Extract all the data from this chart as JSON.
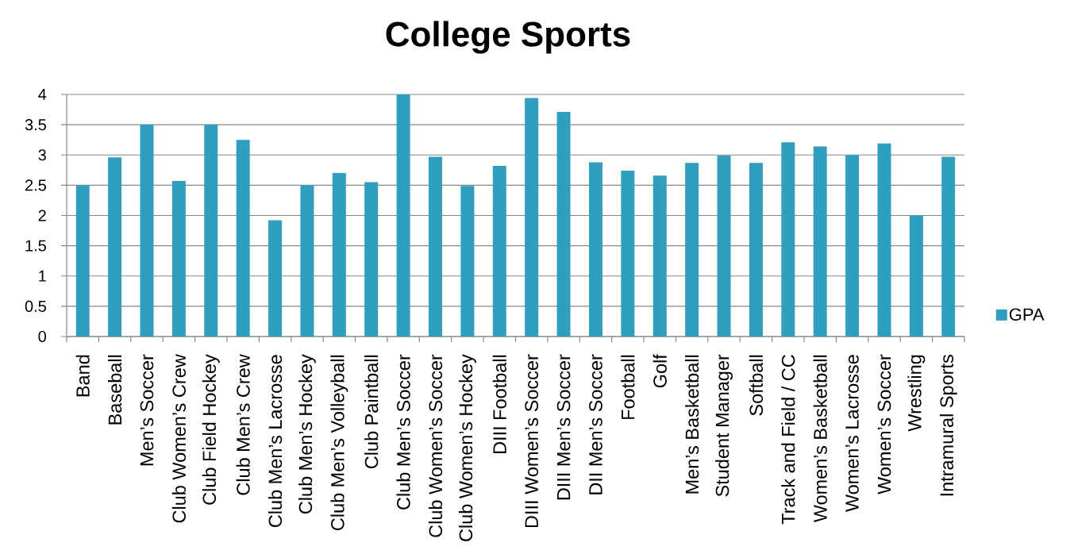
{
  "chart_data": {
    "type": "bar",
    "title": "College Sports",
    "categories": [
      "Band",
      "Baseball",
      "Men’s Soccer",
      "Club Women’s Crew",
      "Club Field Hockey",
      "Club Men’s Crew",
      "Club Men’s Lacrosse",
      "Club Men’s Hockey",
      "Club Men’s Volleyball",
      "Club Paintball",
      "Club Men’s Soccer",
      "Club Women’s Soccer",
      "Club Women’s Hockey",
      "DIII Football",
      "DIII Women’s Soccer",
      "DIII Men’s Soccer",
      "DII Men’s Soccer",
      "Football",
      "Golf",
      "Men’s Basketball",
      "Student Manager",
      "Softball",
      "Track and Field / CC",
      "Women’s Basketball",
      "Women’s Lacrosse",
      "Women’s Soccer",
      "Wrestling",
      "Intramural Sports"
    ],
    "series": [
      {
        "name": "GPA",
        "color": "#2f9fc0",
        "values": [
          2.5,
          2.96,
          3.5,
          2.57,
          3.5,
          3.25,
          1.92,
          2.5,
          2.7,
          2.55,
          4,
          2.97,
          2.49,
          2.82,
          3.94,
          3.71,
          2.88,
          2.74,
          2.66,
          2.87,
          2.99,
          2.87,
          3.21,
          3.14,
          3,
          3.19,
          2,
          2.97
        ]
      }
    ],
    "ylim": [
      0,
      4
    ],
    "yticks": [
      0,
      0.5,
      1,
      1.5,
      2,
      2.5,
      3,
      3.5,
      4
    ],
    "grid": "y",
    "legend": "right"
  }
}
